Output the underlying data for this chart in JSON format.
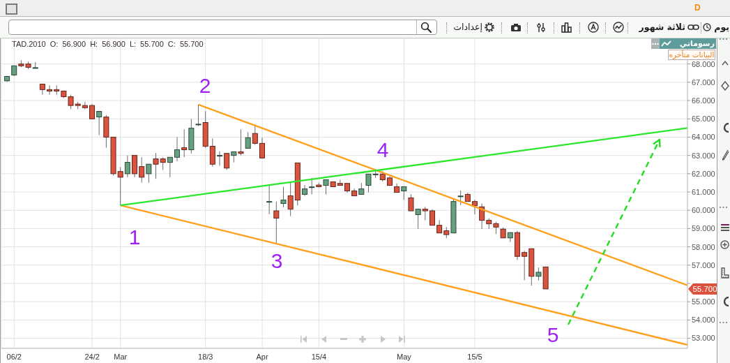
{
  "chart_data": {
    "type": "candlestick",
    "categories": [
      null,
      "06/2",
      null,
      null,
      null,
      null,
      null,
      null,
      null,
      null,
      null,
      null,
      "24/2",
      null,
      null,
      null,
      "Mar",
      null,
      null,
      null,
      null,
      null,
      null,
      null,
      null,
      null,
      null,
      null,
      "18/3",
      null,
      null,
      null,
      null,
      null,
      null,
      null,
      "Apr",
      null,
      null,
      null,
      null,
      null,
      null,
      null,
      "15/4",
      null,
      null,
      null,
      null,
      null,
      null,
      null,
      null,
      null,
      null,
      null,
      "May",
      null,
      null,
      null,
      null,
      null,
      null,
      null,
      null,
      null,
      "15/5",
      null,
      null,
      null,
      null,
      null,
      null,
      null,
      null,
      null,
      null,
      null,
      null,
      null,
      null,
      null,
      null,
      null,
      null,
      null,
      null,
      null,
      null,
      null,
      null,
      null,
      null,
      null,
      null,
      null,
      null
    ],
    "ohlc": [
      [
        67.08,
        67.35,
        67.02,
        67.32
      ],
      [
        67.4,
        67.91,
        67.34,
        67.9
      ],
      [
        68.0,
        68.2,
        67.82,
        67.9
      ],
      [
        68.0,
        68.13,
        67.72,
        67.82
      ],
      [
        67.8,
        68.1,
        67.78,
        67.8
      ],
      [
        66.9,
        66.9,
        66.32,
        66.6
      ],
      [
        66.6,
        66.83,
        66.32,
        66.52
      ],
      [
        66.6,
        66.83,
        66.32,
        66.52
      ],
      [
        66.52,
        66.55,
        66.14,
        66.21
      ],
      [
        66.21,
        66.32,
        65.53,
        65.73
      ],
      [
        65.81,
        65.93,
        65.53,
        65.73
      ],
      [
        65.73,
        65.93,
        65.53,
        65.61
      ],
      [
        65.73,
        65.81,
        65.0,
        65.0
      ],
      [
        65.1,
        65.41,
        64.11,
        65.41
      ],
      [
        65.1,
        65.21,
        63.42,
        64.0
      ],
      [
        64.0,
        64.0,
        61.9,
        62.0
      ],
      [
        62.12,
        62.36,
        60.27,
        61.81
      ],
      [
        62.0,
        63.0,
        61.81,
        62.62
      ],
      [
        63.0,
        63.0,
        61.81,
        62.0
      ],
      [
        62.39,
        62.9,
        61.51,
        61.81
      ],
      [
        62.0,
        62.52,
        61.51,
        62.52
      ],
      [
        62.81,
        63.13,
        61.72,
        62.52
      ],
      [
        62.81,
        62.9,
        62.21,
        62.62
      ],
      [
        62.62,
        62.9,
        61.81,
        62.9
      ],
      [
        62.9,
        64.0,
        62.68,
        63.31
      ],
      [
        63.42,
        64.43,
        62.9,
        63.31
      ],
      [
        63.31,
        64.99,
        63.11,
        64.49
      ],
      [
        64.71,
        65.78,
        64.61,
        64.71
      ],
      [
        64.8,
        65.42,
        63.41,
        63.5
      ],
      [
        63.5,
        63.93,
        62.39,
        62.52
      ],
      [
        63.0,
        63.22,
        62.43,
        63.0
      ],
      [
        63.11,
        63.11,
        62.21,
        62.31
      ],
      [
        63.0,
        63.2,
        62.62,
        63.2
      ],
      [
        63.2,
        64.43,
        63.0,
        63.11
      ],
      [
        63.39,
        64.27,
        63.39,
        63.97
      ],
      [
        64.2,
        64.69,
        63.58,
        63.66
      ],
      [
        63.66,
        63.97,
        62.86,
        62.86
      ],
      [
        60.48,
        61.38,
        59.78,
        60.48
      ],
      [
        59.97,
        60.48,
        58.16,
        59.57
      ],
      [
        60.37,
        61.29,
        60.17,
        60.56
      ],
      [
        60.79,
        61.51,
        59.68,
        60.06
      ],
      [
        62.59,
        62.59,
        60.27,
        60.56
      ],
      [
        60.87,
        61.38,
        60.79,
        61.17
      ],
      [
        61.28,
        61.77,
        60.87,
        61.28
      ],
      [
        61.38,
        61.5,
        61.25,
        61.29
      ],
      [
        61.36,
        61.67,
        60.87,
        61.67
      ],
      [
        61.56,
        61.56,
        61.29,
        61.29
      ],
      [
        61.47,
        61.67,
        61.36,
        61.36
      ],
      [
        61.47,
        61.47,
        60.96,
        61.06
      ],
      [
        61.06,
        61.19,
        60.79,
        60.79
      ],
      [
        60.87,
        61.49,
        60.87,
        61.17
      ],
      [
        61.36,
        61.98,
        60.98,
        61.98
      ],
      [
        61.98,
        62.14,
        61.77,
        61.98
      ],
      [
        61.98,
        62.14,
        61.57,
        61.67
      ],
      [
        61.77,
        61.87,
        61.36,
        61.36
      ],
      [
        61.29,
        61.47,
        60.98,
        60.98
      ],
      [
        61.06,
        61.29,
        60.57,
        61.29
      ],
      [
        60.68,
        60.87,
        59.97,
        59.97
      ],
      [
        59.76,
        60.06,
        58.98,
        60.06
      ],
      [
        60.06,
        60.19,
        59.46,
        59.97
      ],
      [
        59.97,
        60.06,
        59.18,
        59.18
      ],
      [
        59.18,
        59.46,
        58.76,
        58.76
      ],
      [
        58.88,
        59.08,
        58.47,
        58.67
      ],
      [
        58.76,
        60.61,
        58.76,
        60.48
      ],
      [
        60.78,
        61.08,
        60.29,
        60.78
      ],
      [
        60.87,
        60.96,
        60.48,
        60.48
      ],
      [
        60.48,
        60.57,
        59.78,
        60.25
      ],
      [
        60.19,
        60.37,
        58.98,
        59.45
      ],
      [
        59.45,
        59.57,
        58.98,
        59.26
      ],
      [
        59.27,
        59.37,
        58.7,
        59.08
      ],
      [
        58.97,
        59.06,
        58.49,
        58.49
      ],
      [
        58.49,
        58.78,
        58.27,
        58.78
      ],
      [
        58.78,
        58.88,
        57.28,
        57.48
      ],
      [
        57.69,
        57.79,
        56.17,
        57.48
      ],
      [
        57.9,
        57.9,
        55.88,
        56.39
      ],
      [
        56.39,
        56.87,
        56.17,
        56.61
      ],
      [
        56.9,
        56.9,
        55.7,
        55.7
      ],
      null,
      null,
      null,
      null,
      null,
      null,
      null,
      null,
      null,
      null,
      null,
      null,
      null,
      null,
      null,
      null,
      null,
      null,
      null,
      null
    ],
    "colors": [
      "#66a17f",
      "#66a17f",
      "#d9533f",
      "#d9533f",
      "#66a17f",
      "#d9533f",
      "#d9533f",
      "#d9533f",
      "#d9533f",
      "#d9533f",
      "#d9533f",
      "#d9533f",
      "#d9533f",
      "#66a17f",
      "#d9533f",
      "#d9533f",
      "#d9533f",
      "#66a17f",
      "#d9533f",
      "#d9533f",
      "#66a17f",
      "#d9533f",
      "#d9533f",
      "#66a17f",
      "#66a17f",
      "#d9533f",
      "#66a17f",
      "#66a17f",
      "#d9533f",
      "#d9533f",
      "#66a17f",
      "#d9533f",
      "#66a17f",
      "#d9533f",
      "#66a17f",
      "#d9533f",
      "#d9533f",
      "#66a17f",
      "#d9533f",
      "#66a17f",
      "#d9533f",
      "#d9533f",
      "#66a17f",
      "#66a17f",
      "#d9533f",
      "#66a17f",
      "#d9533f",
      "#d9533f",
      "#d9533f",
      "#d9533f",
      "#66a17f",
      "#66a17f",
      "#66a17f",
      "#d9533f",
      "#d9533f",
      "#d9533f",
      "#66a17f",
      "#d9533f",
      "#66a17f",
      "#d9533f",
      "#d9533f",
      "#d9533f",
      "#d9533f",
      "#66a17f",
      "#66a17f",
      "#d9533f",
      "#d9533f",
      "#d9533f",
      "#d9533f",
      "#d9533f",
      "#d9533f",
      "#66a17f",
      "#d9533f",
      "#d9533f",
      "#d9533f",
      "#66a17f",
      "#d9533f",
      null,
      null,
      null,
      null,
      null,
      null,
      null,
      null,
      null,
      null,
      null,
      null,
      null,
      null,
      null,
      null,
      null,
      null,
      null,
      null
    ],
    "series": [
      {
        "type": "line",
        "color": "#ff9f1a",
        "values": [
          null,
          null,
          null,
          null,
          null,
          null,
          null,
          null,
          null,
          null,
          null,
          null,
          null,
          null,
          null,
          null,
          null,
          null,
          null,
          null,
          null,
          null,
          null,
          null,
          null,
          null,
          null,
          65.78,
          null,
          null,
          null,
          null,
          null,
          null,
          null,
          null,
          null,
          null,
          null,
          null,
          null,
          null,
          null,
          null,
          null,
          null,
          null,
          null,
          null,
          null,
          null,
          null,
          null,
          null,
          null,
          null,
          null,
          null,
          null,
          null,
          null,
          null,
          null,
          null,
          null,
          null,
          null,
          null,
          null,
          null,
          null,
          null,
          null,
          null,
          null,
          null,
          null,
          null,
          null,
          null,
          null,
          null,
          null,
          null,
          null,
          null,
          null,
          null,
          null,
          null,
          null,
          null,
          null,
          null,
          null,
          null,
          55.9
        ]
      },
      {
        "type": "line",
        "color": "#ff9f1a",
        "values": [
          null,
          null,
          null,
          null,
          null,
          null,
          null,
          null,
          null,
          null,
          null,
          null,
          null,
          null,
          null,
          null,
          60.27,
          null,
          null,
          null,
          null,
          null,
          null,
          null,
          null,
          null,
          null,
          null,
          null,
          null,
          null,
          null,
          null,
          null,
          null,
          null,
          null,
          null,
          null,
          null,
          null,
          null,
          null,
          null,
          null,
          null,
          null,
          null,
          null,
          null,
          null,
          null,
          null,
          null,
          null,
          null,
          null,
          null,
          null,
          null,
          null,
          null,
          null,
          null,
          null,
          null,
          null,
          null,
          null,
          null,
          null,
          null,
          null,
          null,
          null,
          null,
          null,
          null,
          null,
          null,
          null,
          null,
          null,
          null,
          null,
          null,
          null,
          null,
          null,
          null,
          null,
          null,
          null,
          null,
          null,
          null,
          52.64
        ]
      },
      {
        "type": "line",
        "color": "#2ce82c",
        "values": [
          null,
          null,
          null,
          null,
          null,
          null,
          null,
          null,
          null,
          null,
          null,
          null,
          null,
          null,
          null,
          null,
          60.27,
          null,
          null,
          null,
          null,
          null,
          null,
          null,
          null,
          null,
          null,
          null,
          null,
          null,
          null,
          null,
          null,
          null,
          null,
          null,
          null,
          null,
          null,
          null,
          null,
          null,
          null,
          null,
          null,
          null,
          null,
          null,
          null,
          null,
          null,
          null,
          null,
          null,
          null,
          null,
          null,
          null,
          null,
          null,
          null,
          null,
          null,
          null,
          null,
          null,
          null,
          null,
          null,
          null,
          null,
          null,
          null,
          null,
          null,
          null,
          null,
          null,
          null,
          null,
          null,
          null,
          null,
          null,
          null,
          null,
          null,
          null,
          null,
          null,
          null,
          null,
          null,
          null,
          null,
          null,
          64.5
        ]
      }
    ],
    "ylim": [
      52.45,
      69.4
    ],
    "yticks": [
      {
        "value": 53,
        "label": "53.000"
      },
      {
        "value": 54,
        "label": "54.000"
      },
      {
        "value": 55,
        "label": "55.000"
      },
      {
        "value": 56,
        "label": null
      },
      {
        "value": 57,
        "label": "57.000"
      },
      {
        "value": 58,
        "label": "58.000"
      },
      {
        "value": 59,
        "label": "59.000"
      },
      {
        "value": 60,
        "label": "60.000"
      },
      {
        "value": 61,
        "label": "61.000"
      },
      {
        "value": 62,
        "label": "62.000"
      },
      {
        "value": 63,
        "label": "63.000"
      },
      {
        "value": 64,
        "label": "64.000"
      },
      {
        "value": 65,
        "label": "65.000"
      },
      {
        "value": 66,
        "label": "66.000"
      },
      {
        "value": 67,
        "label": "67.000"
      },
      {
        "value": 68,
        "label": "68.000"
      }
    ],
    "grid": true,
    "annotations": [
      "D",
      "يوم",
      "ثلاثة شهور",
      "إعدادات",
      "TAD.2010 O: 56.900 H: 56.900 L: 55.700 C: 55.700",
      "رسوماتي",
      "البيانات متأخره",
      "1",
      "2",
      "3",
      "4",
      "5",
      "55.700"
    ]
  }
}
